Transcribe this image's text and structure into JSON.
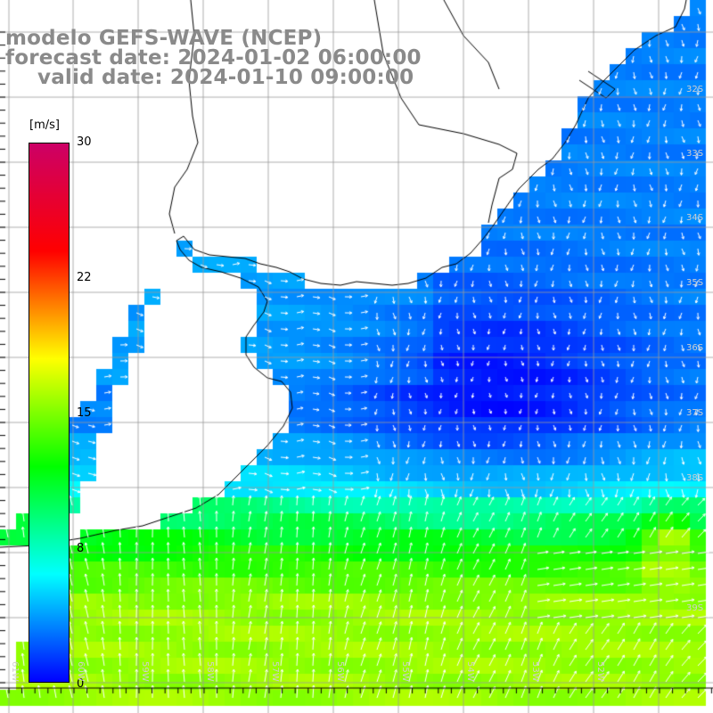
{
  "title": {
    "line1": "modelo GEFS-WAVE (NCEP)",
    "line2": "forecast date: 2024-01-02 06:00:00",
    "line3": "valid date: 2024-01-10 09:00:00"
  },
  "colorbar": {
    "unit": "[m/s]",
    "ticks": [
      "30",
      "22",
      "15",
      "8",
      "0"
    ],
    "tick_values": [
      30,
      22,
      15,
      8,
      0
    ],
    "min": 0,
    "max": 30,
    "colors": [
      "#0000ff",
      "#00ffff",
      "#00ff00",
      "#ffff00",
      "#ff0000",
      "#cc0066"
    ]
  },
  "lat_labels": [
    "32S",
    "33S",
    "34S",
    "35S",
    "36S",
    "37S",
    "38S",
    "39S"
  ],
  "lon_labels": [
    "61W",
    "60W",
    "59W",
    "58W",
    "57W",
    "56W",
    "55W",
    "54W",
    "53W",
    "52W"
  ],
  "map": {
    "land_color": "#ffffff",
    "coast_color": "#000000",
    "grid_color": "#9a9a9a",
    "arrow_color": "#ffffff"
  }
}
